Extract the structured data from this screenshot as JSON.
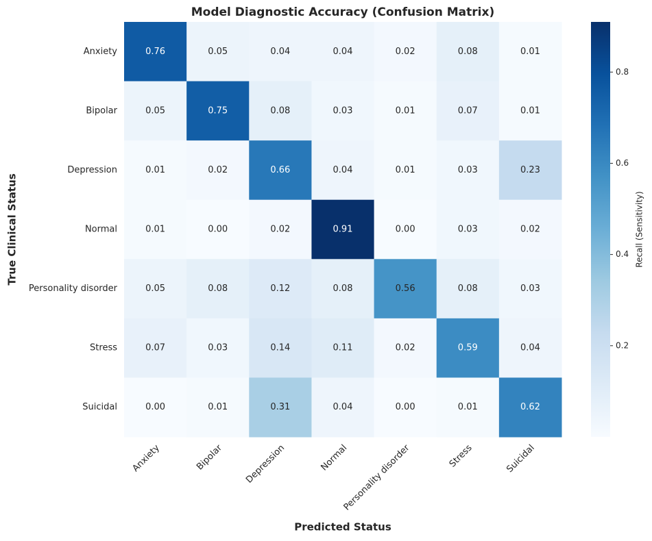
{
  "chart_data": {
    "type": "heatmap",
    "title": "Model Diagnostic Accuracy (Confusion Matrix)",
    "x_label": "Predicted Status",
    "y_label": "True Clinical Status",
    "x_categories": [
      "Anxiety",
      "Bipolar",
      "Depression",
      "Normal",
      "Personality disorder",
      "Stress",
      "Suicidal"
    ],
    "y_categories": [
      "Anxiety",
      "Bipolar",
      "Depression",
      "Normal",
      "Personality disorder",
      "Stress",
      "Suicidal"
    ],
    "values": [
      [
        0.76,
        0.05,
        0.04,
        0.04,
        0.02,
        0.08,
        0.01
      ],
      [
        0.05,
        0.75,
        0.08,
        0.03,
        0.01,
        0.07,
        0.01
      ],
      [
        0.01,
        0.02,
        0.66,
        0.04,
        0.01,
        0.03,
        0.23
      ],
      [
        0.01,
        0.0,
        0.02,
        0.91,
        0.0,
        0.03,
        0.02
      ],
      [
        0.05,
        0.08,
        0.12,
        0.08,
        0.56,
        0.08,
        0.03
      ],
      [
        0.07,
        0.03,
        0.14,
        0.11,
        0.02,
        0.59,
        0.04
      ],
      [
        0.0,
        0.01,
        0.31,
        0.04,
        0.0,
        0.01,
        0.62
      ]
    ],
    "value_labels": [
      [
        "0.76",
        "0.05",
        "0.04",
        "0.04",
        "0.02",
        "0.08",
        "0.01"
      ],
      [
        "0.05",
        "0.75",
        "0.08",
        "0.03",
        "0.01",
        "0.07",
        "0.01"
      ],
      [
        "0.01",
        "0.02",
        "0.66",
        "0.04",
        "0.01",
        "0.03",
        "0.23"
      ],
      [
        "0.01",
        "0.00",
        "0.02",
        "0.91",
        "0.00",
        "0.03",
        "0.02"
      ],
      [
        "0.05",
        "0.08",
        "0.12",
        "0.08",
        "0.56",
        "0.08",
        "0.03"
      ],
      [
        "0.07",
        "0.03",
        "0.14",
        "0.11",
        "0.02",
        "0.59",
        "0.04"
      ],
      [
        "0.00",
        "0.01",
        "0.31",
        "0.04",
        "0.00",
        "0.01",
        "0.62"
      ]
    ],
    "colormap": [
      "#f7fbff",
      "#deebf7",
      "#c6dbef",
      "#9ecae1",
      "#6baed6",
      "#4292c6",
      "#2171b5",
      "#08519c",
      "#08306b"
    ],
    "colorbar_label": "Recall (Sensitivity)",
    "clim": [
      0,
      0.91
    ],
    "cticks": [
      0.2,
      0.4,
      0.6,
      0.8
    ]
  }
}
